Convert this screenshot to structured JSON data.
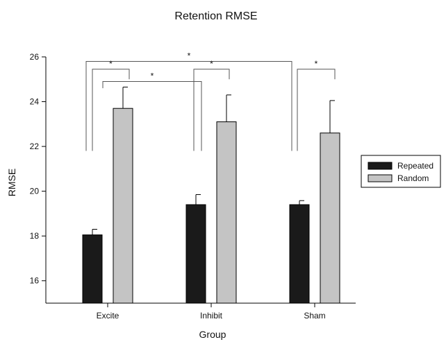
{
  "chart_data": {
    "type": "bar",
    "title": "Retention RMSE",
    "xlabel": "Group",
    "ylabel": "RMSE",
    "categories": [
      "Excite",
      "Inhibit",
      "Sham"
    ],
    "series": [
      {
        "name": "Repeated",
        "color": "#1a1a1a",
        "values": [
          18.05,
          19.4,
          19.4
        ],
        "errors": [
          0.25,
          0.45,
          0.18
        ]
      },
      {
        "name": "Random",
        "color": "#c4c4c4",
        "values": [
          23.7,
          23.1,
          22.6
        ],
        "errors": [
          0.95,
          1.2,
          1.45
        ]
      }
    ],
    "ylim": [
      15,
      26
    ],
    "yticks": [
      16,
      18,
      20,
      22,
      24,
      26
    ],
    "grid": false,
    "legend": "right",
    "significance": [
      {
        "label": "*",
        "from": "Excite Repeated",
        "to": "Excite Random"
      },
      {
        "label": "*",
        "from": "Inhibit Repeated",
        "to": "Inhibit Random"
      },
      {
        "label": "*",
        "from": "Sham Repeated",
        "to": "Sham Random"
      },
      {
        "label": "*",
        "from": "Excite Random",
        "to": "Inhibit Repeated"
      },
      {
        "label": "*",
        "from": "Excite Repeated",
        "to": "Sham Repeated"
      }
    ]
  }
}
